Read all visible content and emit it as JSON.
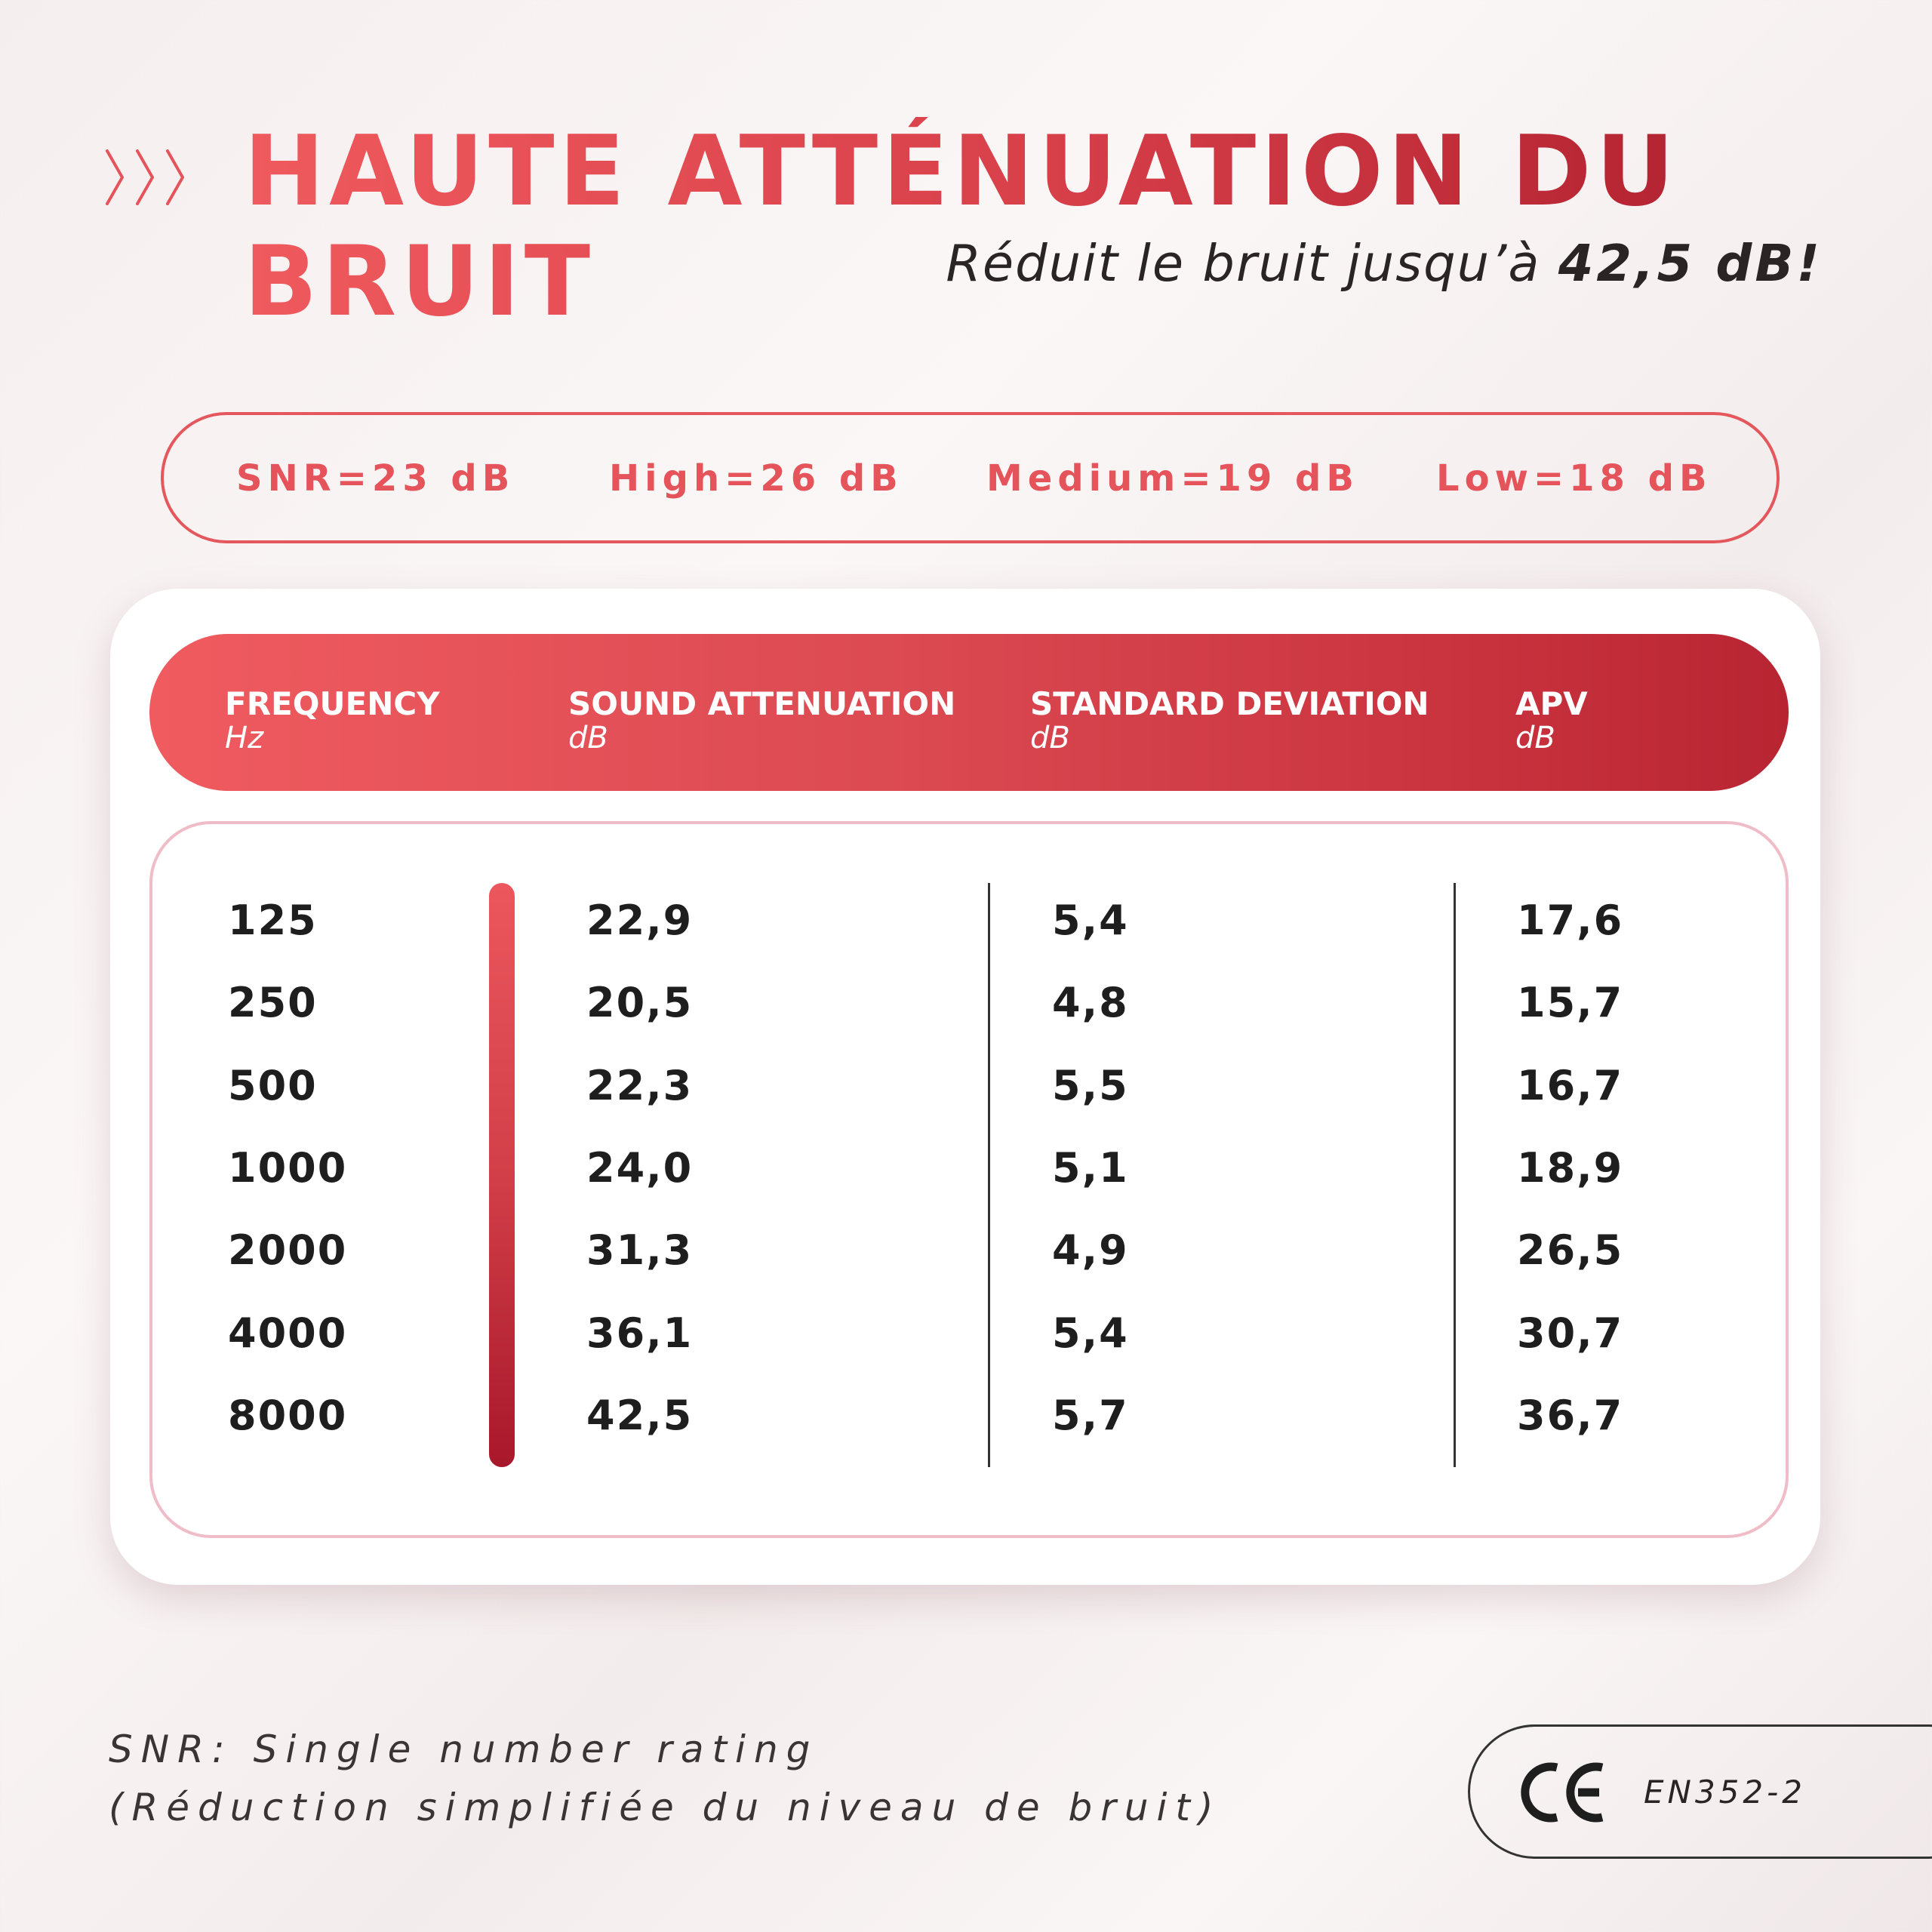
{
  "header": {
    "title_line1": "HAUTE ATTÉNUATION DU",
    "title_line2": "BRUIT",
    "subtitle_prefix": "Réduit le bruit jusqu’à ",
    "subtitle_value": "42,5 dB!"
  },
  "ratings": [
    {
      "label": "SNR=23 dB"
    },
    {
      "label": "High=26 dB"
    },
    {
      "label": "Medium=19 dB"
    },
    {
      "label": "Low=18 dB"
    }
  ],
  "table": {
    "columns": [
      {
        "title": "FREQUENCY",
        "unit": "Hz"
      },
      {
        "title": "SOUND ATTENUATION",
        "unit": "dB"
      },
      {
        "title": "STANDARD DEVIATION",
        "unit": "dB"
      },
      {
        "title": "APV",
        "unit": "dB"
      }
    ],
    "rows": [
      [
        "125",
        "22,9",
        "5,4",
        "17,6"
      ],
      [
        "250",
        "20,5",
        "4,8",
        "15,7"
      ],
      [
        "500",
        "22,3",
        "5,5",
        "16,7"
      ],
      [
        "1000",
        "24,0",
        "5,1",
        "18,9"
      ],
      [
        "2000",
        "31,3",
        "4,9",
        "26,5"
      ],
      [
        "4000",
        "36,1",
        "5,4",
        "30,7"
      ],
      [
        "8000",
        "42,5",
        "5,7",
        "36,7"
      ]
    ]
  },
  "footnote": {
    "line1": "SNR: Single number rating",
    "line2": "(Réduction simplifiée du niveau de bruit)"
  },
  "certification": {
    "mark": "CE",
    "standard": "EN352-2"
  },
  "colors": {
    "accent": "#e4545a",
    "accent_dark": "#b52432",
    "text": "#1e1e1e"
  }
}
